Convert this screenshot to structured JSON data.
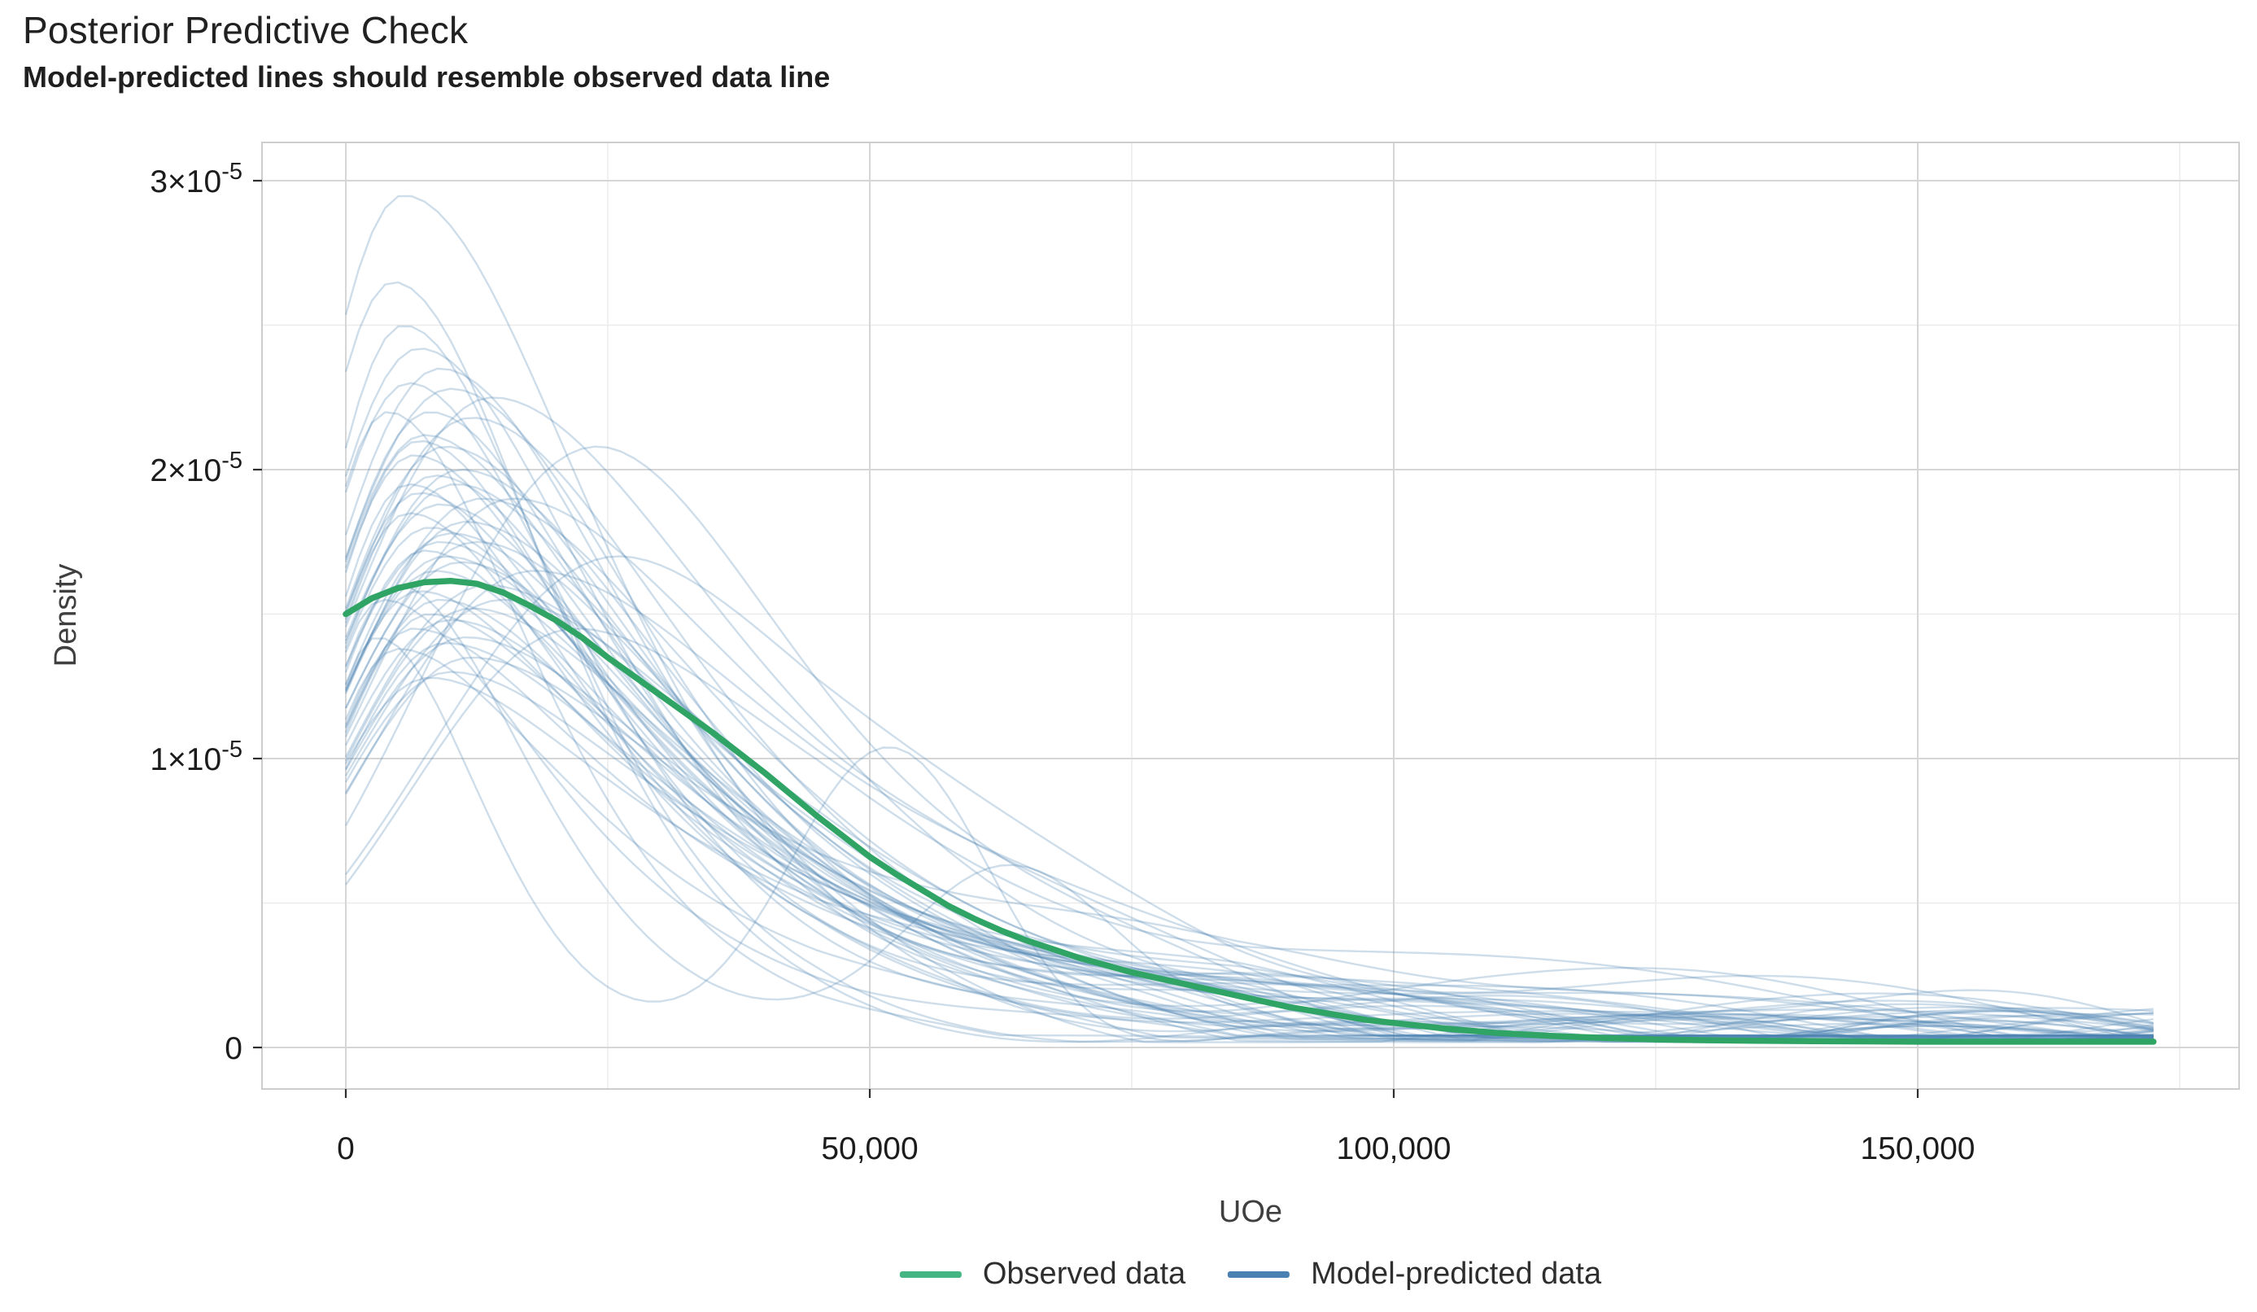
{
  "chart_data": {
    "type": "line",
    "title": "Posterior Predictive Check",
    "subtitle": "Model-predicted lines should resemble observed data line",
    "xlabel": "UOe",
    "ylabel": "Density",
    "x_axis": {
      "unit_multiplier": 1000,
      "range_k": [
        -8,
        180.7
      ],
      "major_ticks": [
        {
          "v": 0,
          "label": "0"
        },
        {
          "v": 50,
          "label": "50,000"
        },
        {
          "v": 100,
          "label": "100,000"
        },
        {
          "v": 150,
          "label": "150,000"
        }
      ],
      "minor_ticks": [
        25,
        75,
        125,
        175
      ]
    },
    "y_axis": {
      "unit_multiplier": 1e-05,
      "range_e5": [
        -0.144,
        3.13
      ],
      "major_ticks": [
        {
          "v": 0,
          "mantissa": "0",
          "exponent": ""
        },
        {
          "v": 1,
          "mantissa": "1×10",
          "exponent": "-5"
        },
        {
          "v": 2,
          "mantissa": "2×10",
          "exponent": "-5"
        },
        {
          "v": 3,
          "mantissa": "3×10",
          "exponent": "-5"
        }
      ],
      "minor_ticks": [
        0.5,
        1.5,
        2.5
      ]
    },
    "grid": {
      "major_color": "#d6d6d6",
      "minor_color": "#ebebeb",
      "border_color": "#cdcdcd",
      "tick_color": "#2f2f2f",
      "background": "#ffffff"
    },
    "legend": {
      "position": "bottom-center",
      "items": [
        {
          "label": "Observed data",
          "color": "#45b584"
        },
        {
          "label": "Model-predicted data",
          "color": "#4a80b2"
        }
      ]
    },
    "observed": {
      "label": "Observed data",
      "color": "#2fa465",
      "line_width": 7.5,
      "x_k": [
        0,
        2.5,
        5,
        7.5,
        10,
        12.5,
        15,
        17.5,
        20,
        22.5,
        25,
        27.5,
        30,
        32.5,
        35,
        37.5,
        40,
        42.5,
        45,
        47.5,
        50,
        52.5,
        55,
        57.5,
        60,
        62.5,
        65,
        67.5,
        70,
        72.5,
        75,
        77.5,
        80,
        82.5,
        85,
        87.5,
        90,
        92.5,
        95,
        97.5,
        100,
        105,
        110,
        115,
        120,
        125,
        130,
        135,
        140,
        145,
        150,
        155,
        160,
        165,
        170,
        172.5
      ],
      "y_e5": [
        1.5,
        1.555,
        1.59,
        1.61,
        1.615,
        1.605,
        1.575,
        1.53,
        1.48,
        1.42,
        1.35,
        1.285,
        1.22,
        1.155,
        1.09,
        1.02,
        0.95,
        0.875,
        0.8,
        0.73,
        0.66,
        0.6,
        0.545,
        0.49,
        0.445,
        0.405,
        0.37,
        0.34,
        0.31,
        0.285,
        0.26,
        0.24,
        0.22,
        0.2,
        0.18,
        0.16,
        0.14,
        0.125,
        0.11,
        0.095,
        0.085,
        0.065,
        0.05,
        0.04,
        0.033,
        0.028,
        0.025,
        0.023,
        0.022,
        0.021,
        0.02,
        0.02,
        0.02,
        0.02,
        0.02,
        0.02
      ]
    },
    "predicted": {
      "label": "Model-predicted data",
      "color": "#4a80b2",
      "opacity": 0.27,
      "line_width": 2.4,
      "n_curves": 55,
      "x_end_k": 172.5,
      "floor_e5": 0.03,
      "param_format": "[mode_k, peak_e5, sigma_left_k, sigma_right_k, tail_heaviness, wiggle_amp_e5, wiggle_period_k, wiggle_phase, bump_x_k?, bump_h_e5?, bump_w_k?]",
      "curves": [
        [
          5.5,
          2.95,
          10,
          16,
          0.55,
          0.07,
          13,
          0.0
        ],
        [
          4.5,
          2.65,
          9,
          13,
          0.62,
          0.09,
          17,
          2.0
        ],
        [
          7,
          2.42,
          11,
          15,
          0.7,
          0.07,
          15,
          4.0
        ],
        [
          9,
          2.35,
          12,
          16,
          0.6,
          0.11,
          19,
          1.0
        ],
        [
          6,
          2.3,
          10,
          14,
          0.75,
          0.09,
          14,
          3.0
        ],
        [
          10,
          2.28,
          13,
          17,
          0.55,
          0.07,
          21,
          5.0
        ],
        [
          8,
          2.2,
          11,
          15,
          0.8,
          0.11,
          16,
          2.5
        ],
        [
          12,
          2.18,
          14,
          18,
          0.62,
          0.09,
          18,
          0.5
        ],
        [
          7.5,
          2.12,
          11,
          16,
          0.85,
          0.07,
          22,
          1.5
        ],
        [
          24,
          2.08,
          17,
          17,
          0.7,
          0.11,
          15,
          3.5
        ],
        [
          9.5,
          2.08,
          12,
          17,
          0.68,
          0.09,
          20,
          4.5
        ],
        [
          6.5,
          2.05,
          10,
          15,
          0.9,
          0.11,
          13,
          2.0
        ],
        [
          11,
          2.0,
          13,
          18,
          0.6,
          0.07,
          17,
          5.5
        ],
        [
          8.5,
          1.98,
          11,
          16,
          0.78,
          0.09,
          19,
          0.0
        ],
        [
          10.5,
          1.95,
          13,
          17,
          0.72,
          0.11,
          14,
          2.8
        ],
        [
          7,
          1.92,
          10,
          15,
          0.95,
          0.09,
          16,
          1.2
        ],
        [
          13,
          1.9,
          14,
          19,
          0.65,
          0.07,
          23,
          3.2
        ],
        [
          9,
          1.88,
          12,
          16,
          0.85,
          0.11,
          18,
          4.2
        ],
        [
          6,
          1.85,
          9,
          14,
          1.0,
          0.09,
          15,
          0.8
        ],
        [
          11.5,
          1.82,
          13,
          18,
          0.72,
          0.07,
          20,
          2.2
        ],
        [
          8,
          1.8,
          11,
          16,
          0.9,
          0.11,
          17,
          5.0
        ],
        [
          10,
          1.78,
          12,
          17,
          0.78,
          0.09,
          13,
          1.8
        ],
        [
          12.5,
          1.75,
          14,
          18,
          0.72,
          0.11,
          21,
          3.8
        ],
        [
          7.5,
          1.72,
          10,
          15,
          0.95,
          0.07,
          16,
          0.3
        ],
        [
          9.5,
          1.7,
          12,
          17,
          0.82,
          0.09,
          18,
          2.6
        ],
        [
          26,
          1.7,
          18,
          20,
          0.8,
          0.11,
          15,
          4.8
        ],
        [
          11,
          1.68,
          13,
          17,
          0.78,
          0.07,
          22,
          1.4
        ],
        [
          8.5,
          1.65,
          11,
          16,
          0.95,
          0.11,
          14,
          3.4
        ],
        [
          10.5,
          1.62,
          12,
          17,
          0.85,
          0.09,
          19,
          5.2
        ],
        [
          13.5,
          1.6,
          14,
          19,
          0.72,
          0.07,
          16,
          0.6
        ],
        [
          7,
          1.58,
          10,
          15,
          1.1,
          0.11,
          17,
          2.4
        ],
        [
          9,
          1.55,
          11,
          16,
          0.9,
          0.09,
          20,
          4.4
        ],
        [
          12,
          1.52,
          13,
          18,
          0.8,
          0.07,
          15,
          1.6
        ],
        [
          8,
          1.5,
          10,
          16,
          1.0,
          0.11,
          18,
          3.6
        ],
        [
          10,
          1.48,
          12,
          17,
          0.9,
          0.09,
          13,
          5.4
        ],
        [
          6.5,
          1.45,
          9,
          15,
          1.15,
          0.07,
          21,
          0.9
        ],
        [
          11.5,
          1.42,
          13,
          18,
          0.85,
          0.11,
          16,
          2.9
        ],
        [
          9.5,
          1.4,
          11,
          17,
          0.95,
          0.09,
          19,
          4.6
        ],
        [
          3,
          1.42,
          6,
          9,
          0.6,
          0.07,
          15,
          1.1,
          52,
          1.05,
          9.5
        ],
        [
          5,
          1.6,
          8,
          11,
          0.7,
          0.09,
          17,
          3.1,
          63,
          0.6,
          10
        ],
        [
          14,
          2.25,
          15,
          20,
          0.6,
          0.11,
          18,
          1.3
        ],
        [
          16,
          1.9,
          15,
          20,
          0.72,
          0.09,
          15,
          4.1
        ],
        [
          5.5,
          2.5,
          9,
          13,
          0.68,
          0.07,
          19,
          2.1
        ],
        [
          4,
          2.2,
          8,
          12,
          0.78,
          0.11,
          14,
          5.1
        ],
        [
          12,
          1.35,
          13,
          18,
          0.9,
          0.09,
          17,
          0.2,
          80,
          0.25,
          18
        ],
        [
          10,
          1.3,
          12,
          17,
          1.05,
          0.07,
          20,
          2.7
        ],
        [
          8,
          1.28,
          11,
          16,
          1.15,
          0.11,
          16,
          4.9
        ],
        [
          15,
          1.55,
          15,
          19,
          0.8,
          0.09,
          22,
          1.9
        ],
        [
          7,
          2.1,
          10,
          14,
          0.85,
          0.07,
          18,
          3.9,
          110,
          0.18,
          25
        ],
        [
          9,
          1.75,
          12,
          16,
          0.9,
          0.11,
          15,
          0.4,
          140,
          0.2,
          20
        ],
        [
          6,
          1.95,
          9,
          14,
          0.95,
          0.09,
          21,
          2.3,
          160,
          0.22,
          15
        ],
        [
          18,
          1.65,
          16,
          21,
          0.72,
          0.07,
          17,
          4.3
        ],
        [
          5,
          1.38,
          8,
          14,
          1.05,
          0.09,
          16,
          5.6
        ],
        [
          22,
          1.45,
          16,
          20,
          0.85,
          0.11,
          19,
          1.7
        ],
        [
          3.5,
          1.55,
          7,
          13,
          0.95,
          0.07,
          14,
          3.3
        ]
      ]
    }
  }
}
